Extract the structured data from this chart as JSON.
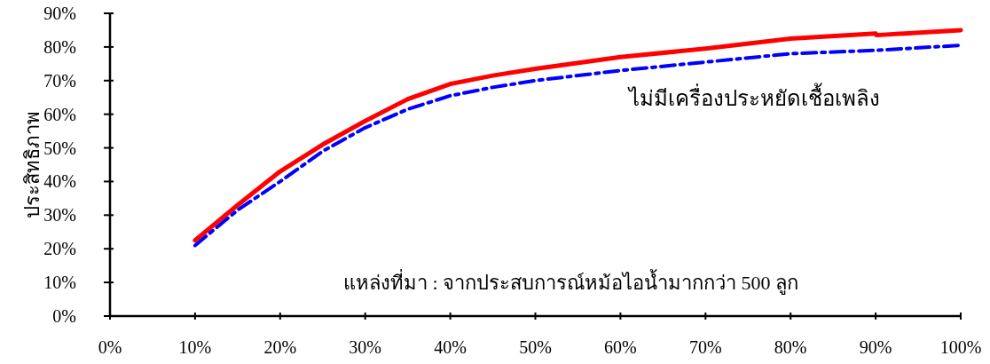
{
  "chart_data": {
    "type": "line",
    "ylabel": "ประสิทธิภาพ",
    "annotations": [
      "แหล่งที่มา :  จากประสบการณ์หม้อไอน้ำมากกว่า  500 ลูก"
    ],
    "x": [
      10,
      15,
      20,
      25,
      30,
      35,
      40,
      45,
      50,
      60,
      70,
      80,
      90,
      90.1,
      100
    ],
    "series": [
      {
        "color": "#ff0000",
        "line_style": "solid",
        "values": [
          22.5,
          33,
          43,
          51,
          58,
          64.5,
          69,
          71.5,
          73.5,
          77,
          79.5,
          82.5,
          84,
          83.5,
          85
        ]
      },
      {
        "name": "ไม่มีเครื่องประหยัดเชื้อเพลิง",
        "color": "#0000ff",
        "line_style": "dashed",
        "values": [
          21,
          31.5,
          40,
          49,
          56,
          61.5,
          65.5,
          68,
          70,
          73,
          75.5,
          78,
          79,
          79,
          80.5
        ]
      }
    ],
    "xlim": [
      0,
      100
    ],
    "ylim": [
      0,
      90
    ],
    "xticks": [
      {
        "value": 0,
        "label": "0%"
      },
      {
        "value": 10,
        "label": "10%"
      },
      {
        "value": 20,
        "label": "20%"
      },
      {
        "value": 30,
        "label": "30%"
      },
      {
        "value": 40,
        "label": "40%"
      },
      {
        "value": 50,
        "label": "50%"
      },
      {
        "value": 60,
        "label": "60%"
      },
      {
        "value": 70,
        "label": "70%"
      },
      {
        "value": 80,
        "label": "80%"
      },
      {
        "value": 90,
        "label": "90%"
      },
      {
        "value": 100,
        "label": "100%"
      }
    ],
    "yticks": [
      {
        "value": 0,
        "label": "0%"
      },
      {
        "value": 10,
        "label": "10%"
      },
      {
        "value": 20,
        "label": "20%"
      },
      {
        "value": 30,
        "label": "30%"
      },
      {
        "value": 40,
        "label": "40%"
      },
      {
        "value": 50,
        "label": "50%"
      },
      {
        "value": 60,
        "label": "60%"
      },
      {
        "value": 70,
        "label": "70%"
      },
      {
        "value": 80,
        "label": "80%"
      },
      {
        "value": 90,
        "label": "90%"
      }
    ]
  }
}
